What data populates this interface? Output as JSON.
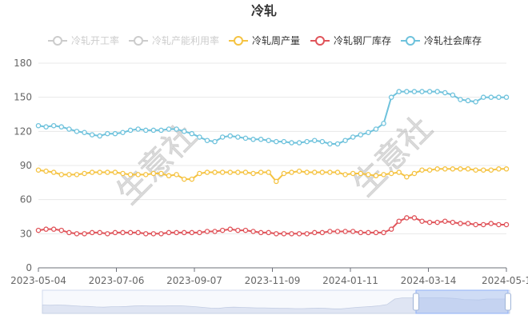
{
  "chart_data": {
    "type": "line",
    "title": "冷轧",
    "legend_position": "top-center",
    "x_tick_labels": [
      "2023-05-04",
      "2023-07-06",
      "2023-09-07",
      "2023-11-09",
      "2024-01-11",
      "2024-03-14",
      "2024-05-1"
    ],
    "ylim": [
      0,
      180
    ],
    "y_ticks": [
      0,
      30,
      60,
      90,
      120,
      150,
      180
    ],
    "grid": true,
    "colors": {
      "inactive": "#cccccc",
      "weekly_output": "#f5c342",
      "mill_inventory": "#e0545a",
      "social_inventory": "#6ec2dc",
      "axis_text": "#666666",
      "grid": "#e8e8e8"
    },
    "series": [
      {
        "name": "冷轧开工率",
        "enabled": false,
        "values": []
      },
      {
        "name": "冷轧产能利用率",
        "enabled": false,
        "values": []
      },
      {
        "name": "冷轧周产量",
        "enabled": true,
        "color_key": "weekly_output",
        "values": [
          86,
          85,
          84,
          82,
          82,
          82,
          83,
          84,
          84,
          84,
          84,
          83,
          82,
          82,
          82,
          83,
          83,
          81,
          82,
          78,
          78,
          83,
          84,
          84,
          84,
          84,
          84,
          84,
          83,
          84,
          84,
          76,
          83,
          84,
          85,
          84,
          84,
          84,
          84,
          84,
          82,
          83,
          83,
          82,
          81,
          82,
          83,
          84,
          80,
          83,
          86,
          86,
          87,
          87,
          87,
          87,
          87,
          86,
          86,
          86,
          87,
          87
        ]
      },
      {
        "name": "冷轧钢厂库存",
        "enabled": true,
        "color_key": "mill_inventory",
        "values": [
          33,
          34,
          34,
          33,
          31,
          30,
          30,
          31,
          31,
          30,
          31,
          31,
          31,
          31,
          30,
          30,
          30,
          31,
          31,
          31,
          31,
          31,
          32,
          32,
          33,
          34,
          33,
          33,
          32,
          31,
          31,
          30,
          30,
          30,
          30,
          30,
          31,
          31,
          32,
          32,
          32,
          32,
          31,
          31,
          31,
          31,
          34,
          41,
          44,
          44,
          41,
          40,
          40,
          41,
          40,
          39,
          39,
          38,
          38,
          39,
          38,
          38
        ]
      },
      {
        "name": "冷轧社会库存",
        "enabled": true,
        "color_key": "social_inventory",
        "values": [
          125,
          124,
          125,
          124,
          122,
          120,
          119,
          117,
          116,
          118,
          118,
          119,
          121,
          122,
          121,
          121,
          121,
          122,
          122,
          120,
          118,
          115,
          112,
          111,
          115,
          116,
          115,
          114,
          113,
          113,
          112,
          111,
          111,
          110,
          110,
          111,
          112,
          111,
          109,
          109,
          112,
          115,
          117,
          119,
          122,
          127,
          150,
          155,
          155,
          155,
          155,
          155,
          155,
          154,
          152,
          148,
          147,
          146,
          150,
          150,
          150,
          150
        ]
      }
    ]
  },
  "watermarks": [
    "生意社",
    "生意社"
  ]
}
